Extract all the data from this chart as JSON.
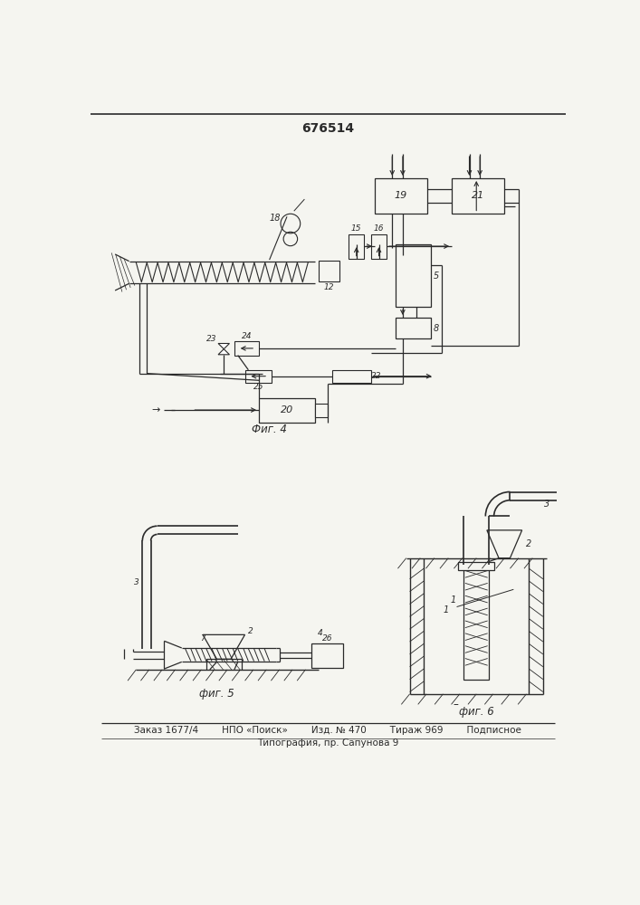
{
  "title": "676514",
  "fig4_label": "Фиг. 4",
  "fig5_label": "фиг. 5",
  "fig6_label": "фиг. 6",
  "footer_line1": "Заказ 1677/4        НПО «Поиск»        Изд. № 470        Тираж 969        Подписное",
  "footer_line2": "Типография, пр. Сапунова 9",
  "bg_color": "#f5f5f0",
  "line_color": "#2a2a2a",
  "text_color": "#2a2a2a"
}
